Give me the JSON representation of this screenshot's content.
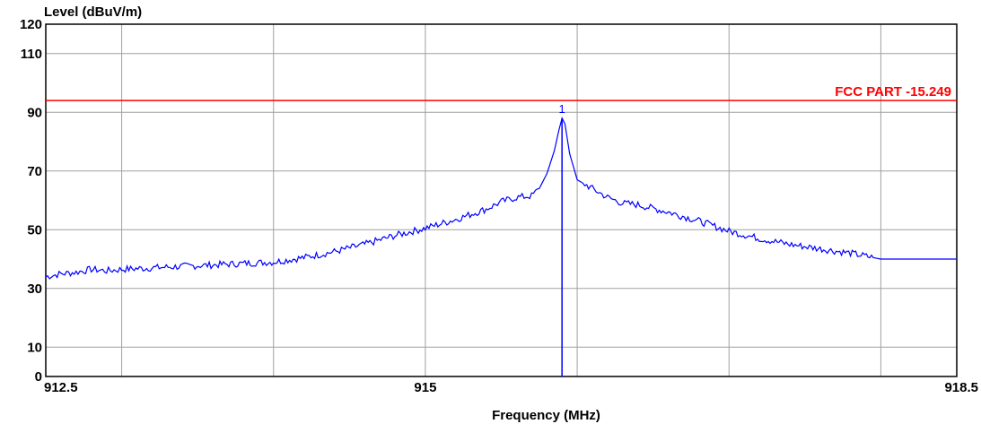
{
  "chart_data": {
    "type": "line",
    "title": "",
    "ylabel": "Level (dBuV/m)",
    "xlabel": "Frequency (MHz)",
    "xlim": [
      912.5,
      918.5
    ],
    "ylim": [
      0,
      120
    ],
    "x_tick_labels": [
      "912.5",
      "915",
      "918.5"
    ],
    "x_tick_values": [
      912.5,
      915,
      918.5
    ],
    "y_tick_labels": [
      "0",
      "10",
      "30",
      "50",
      "70",
      "90",
      "110",
      "120"
    ],
    "y_tick_values": [
      0,
      10,
      30,
      50,
      70,
      90,
      110,
      120
    ],
    "grid": true,
    "grid_x": [
      913,
      914,
      915,
      916,
      917,
      918
    ],
    "grid_y": [
      10,
      30,
      50,
      70,
      90,
      110
    ],
    "limit_line": {
      "label": "FCC PART -15.249",
      "value": 94,
      "color": "#ff0000"
    },
    "marker": {
      "label": "1",
      "x": 915.9,
      "y": 88
    },
    "series": [
      {
        "color": "#0000ff",
        "x": [
          912.5,
          912.6,
          912.7,
          912.8,
          912.9,
          913.0,
          913.2,
          913.4,
          913.6,
          913.8,
          914.0,
          914.2,
          914.4,
          914.6,
          914.8,
          915.0,
          915.2,
          915.4,
          915.5,
          915.6,
          915.7,
          915.75,
          915.8,
          915.85,
          915.88,
          915.9,
          915.92,
          915.95,
          916.0,
          916.05,
          916.1,
          916.2,
          916.3,
          916.4,
          916.6,
          916.8,
          917.0,
          917.2,
          917.4,
          917.6,
          917.8,
          917.95,
          918.0,
          918.2,
          918.5
        ],
        "y": [
          34,
          35,
          35.5,
          36.5,
          36,
          36.5,
          37,
          37.5,
          38,
          38.5,
          39,
          40.5,
          42.5,
          45,
          48,
          50.5,
          53.5,
          57,
          59.5,
          61,
          61.5,
          64,
          69,
          77,
          84,
          88,
          86,
          76,
          67,
          65.5,
          64,
          61,
          59,
          58.5,
          56,
          53,
          49.5,
          47,
          45,
          43.5,
          42,
          40.5,
          40,
          40,
          40
        ]
      }
    ]
  }
}
